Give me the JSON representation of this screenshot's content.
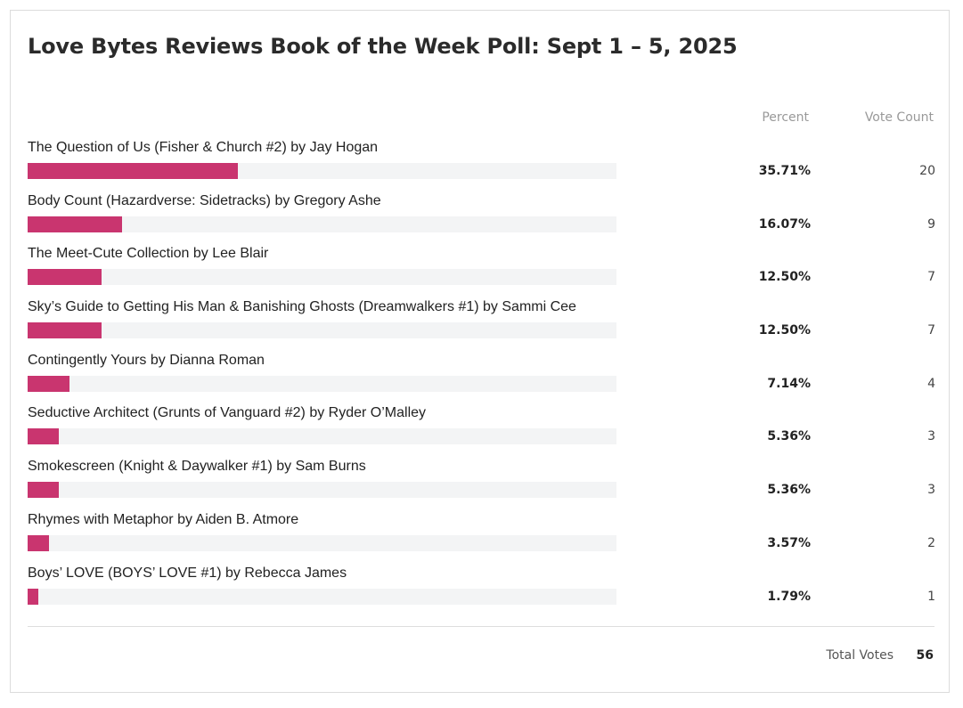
{
  "poll": {
    "title": "Love Bytes Reviews Book of the Week Poll: Sept 1 – 5, 2025",
    "percent_header": "Percent",
    "count_header": "Vote Count",
    "total_label": "Total Votes",
    "total_value": "56"
  },
  "colors": {
    "bar": "#c9356f",
    "track": "#f3f4f5"
  },
  "chart_data": {
    "type": "bar",
    "orientation": "horizontal",
    "title": "Love Bytes Reviews Book of the Week Poll: Sept 1 – 5, 2025",
    "xlim": [
      0,
      100
    ],
    "categories": [
      "The Question of Us (Fisher & Church #2) by Jay Hogan",
      "Body Count (Hazardverse: Sidetracks) by Gregory Ashe",
      "The Meet-Cute Collection by Lee Blair",
      "Sky’s Guide to Getting His Man & Banishing Ghosts (Dreamwalkers #1) by Sammi Cee",
      "Contingently Yours by Dianna Roman",
      "Seductive Architect (Grunts of Vanguard #2) by Ryder O’Malley",
      "Smokescreen (Knight & Daywalker #1) by Sam Burns",
      "Rhymes with Metaphor by Aiden B. Atmore",
      "Boys’ LOVE (BOYS’ LOVE #1) by Rebecca James"
    ],
    "values": [
      35.71,
      16.07,
      12.5,
      12.5,
      7.14,
      5.36,
      5.36,
      3.57,
      1.79
    ],
    "percent_labels": [
      "35.71%",
      "16.07%",
      "12.50%",
      "12.50%",
      "7.14%",
      "5.36%",
      "5.36%",
      "3.57%",
      "1.79%"
    ],
    "vote_counts": [
      "20",
      "9",
      "7",
      "7",
      "4",
      "3",
      "3",
      "2",
      "1"
    ]
  }
}
